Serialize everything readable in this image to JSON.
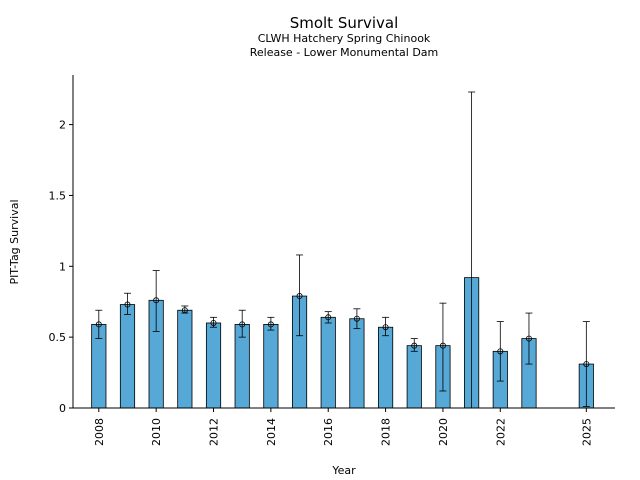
{
  "chart_data": {
    "type": "bar",
    "title": "Smolt Survival",
    "subtitle_line1": "CLWH Hatchery Spring Chinook",
    "subtitle_line2": "Release - Lower Monumental Dam",
    "xlabel": "Year",
    "ylabel": "PIT-Tag Survival",
    "ylim": [
      0,
      2.35
    ],
    "xlim": [
      2007.1,
      2026
    ],
    "yticks": [
      0,
      0.5,
      1,
      1.5,
      2
    ],
    "ytick_labels": [
      "0",
      "0.5",
      "1",
      "1.5",
      "2"
    ],
    "xticks": [
      2008,
      2010,
      2012,
      2014,
      2016,
      2018,
      2020,
      2022,
      2025
    ],
    "xtick_labels": [
      "2008",
      "2010",
      "2012",
      "2014",
      "2016",
      "2018",
      "2020",
      "2022",
      "2025"
    ],
    "bar_color": "#56A8D6",
    "grid": false,
    "points": [
      {
        "year": 2008,
        "value": 0.59,
        "lower": 0.49,
        "upper": 0.69,
        "marker": true
      },
      {
        "year": 2009,
        "value": 0.73,
        "lower": 0.66,
        "upper": 0.81,
        "marker": true
      },
      {
        "year": 2010,
        "value": 0.76,
        "lower": 0.54,
        "upper": 0.97,
        "marker": true
      },
      {
        "year": 2011,
        "value": 0.69,
        "lower": 0.67,
        "upper": 0.72,
        "marker": true
      },
      {
        "year": 2012,
        "value": 0.6,
        "lower": 0.57,
        "upper": 0.64,
        "marker": true
      },
      {
        "year": 2013,
        "value": 0.59,
        "lower": 0.5,
        "upper": 0.69,
        "marker": true
      },
      {
        "year": 2014,
        "value": 0.59,
        "lower": 0.55,
        "upper": 0.64,
        "marker": true
      },
      {
        "year": 2015,
        "value": 0.79,
        "lower": 0.51,
        "upper": 1.08,
        "marker": true
      },
      {
        "year": 2016,
        "value": 0.64,
        "lower": 0.6,
        "upper": 0.68,
        "marker": true
      },
      {
        "year": 2017,
        "value": 0.63,
        "lower": 0.56,
        "upper": 0.7,
        "marker": true
      },
      {
        "year": 2018,
        "value": 0.57,
        "lower": 0.51,
        "upper": 0.64,
        "marker": true
      },
      {
        "year": 2019,
        "value": 0.44,
        "lower": 0.4,
        "upper": 0.49,
        "marker": true
      },
      {
        "year": 2020,
        "value": 0.44,
        "lower": 0.12,
        "upper": 0.74,
        "marker": true
      },
      {
        "year": 2021,
        "value": 0.92,
        "lower": 0.0,
        "upper": 2.23,
        "marker": false
      },
      {
        "year": 2022,
        "value": 0.4,
        "lower": 0.19,
        "upper": 0.61,
        "marker": true
      },
      {
        "year": 2023,
        "value": 0.49,
        "lower": 0.31,
        "upper": 0.67,
        "marker": true
      },
      {
        "year": 2025,
        "value": 0.31,
        "lower": 0.01,
        "upper": 0.61,
        "marker": true
      }
    ]
  }
}
